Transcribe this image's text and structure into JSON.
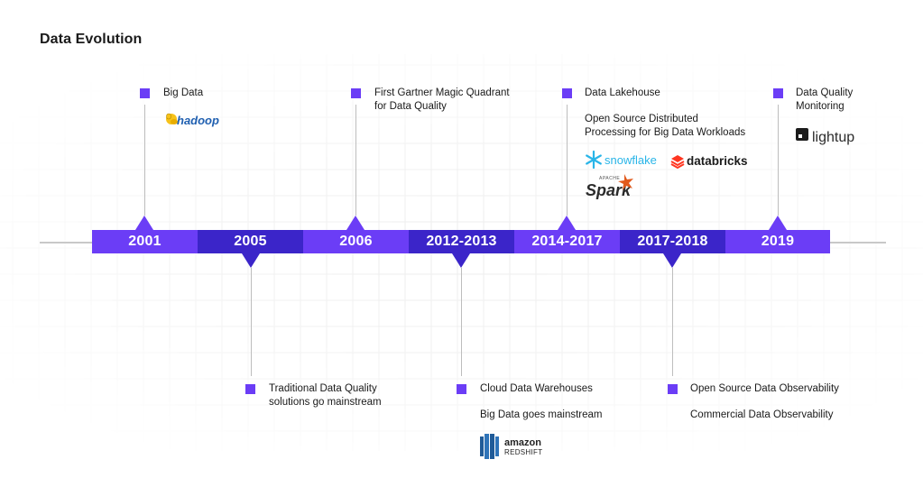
{
  "title": "Data Evolution",
  "colors": {
    "light_purple": "#6b3df6",
    "dark_purple": "#3b25c9",
    "axis": "#c8c8c8"
  },
  "periods": [
    "2001",
    "2005",
    "2006",
    "2012-2013",
    "2014-2017",
    "2017-2018",
    "2019"
  ],
  "events": {
    "e2001": {
      "lines": [
        "Big Data"
      ],
      "logo": "hadoop"
    },
    "e2005": {
      "lines": [
        "Traditional Data Quality",
        "solutions go mainstream"
      ]
    },
    "e2006": {
      "lines": [
        "First Gartner Magic Quadrant",
        "for Data Quality"
      ]
    },
    "e2012": {
      "line1": "Cloud Data Warehouses",
      "line2": "Big Data goes mainstream",
      "logo_top": "amazon",
      "logo_bottom": "REDSHIFT"
    },
    "e2014": {
      "line1": "Data Lakehouse",
      "line2a": "Open Source Distributed",
      "line2b": "Processing for Big Data Workloads",
      "logos": {
        "snowflake": "snowflake",
        "databricks": "databricks",
        "spark_top": "APACHE",
        "spark": "Spark"
      }
    },
    "e2017": {
      "line1": "Open Source Data Observability",
      "line2": "Commercial Data Observability"
    },
    "e2019": {
      "lines": [
        "Data Quality",
        "Monitoring"
      ],
      "logo": "lightup"
    }
  }
}
